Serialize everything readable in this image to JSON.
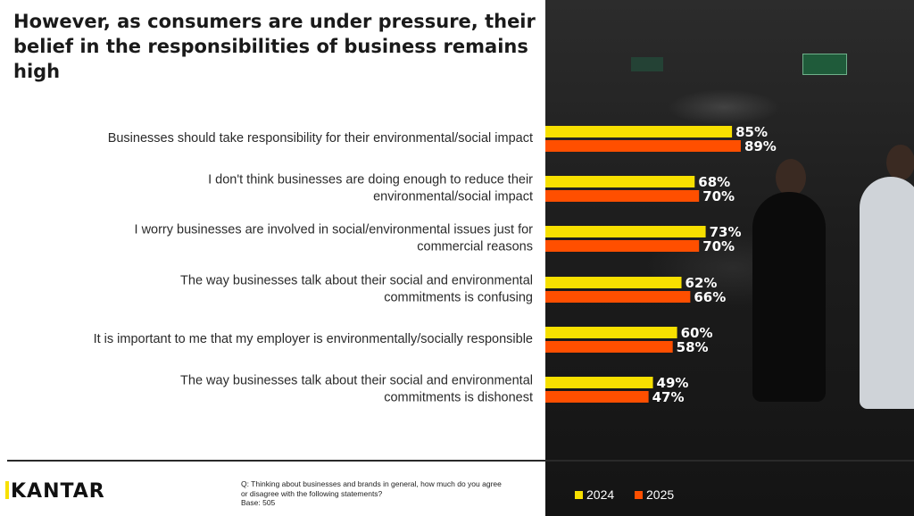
{
  "title": "However, as consumers are under pressure, their belief in the responsibilities of business remains high",
  "brand": "KANTAR",
  "footnote": {
    "question": "Q: Thinking about businesses and brands in general, how much do you agree or disagree with the following statements?",
    "base": "Base: 505"
  },
  "colors": {
    "series_2024": "#f7e000",
    "series_2025": "#ff4f00",
    "label_text": "#ffffff",
    "category_text": "#2a2a2a"
  },
  "chart_data": {
    "type": "bar",
    "orientation": "horizontal",
    "categories": [
      [
        "Businesses should take responsibility for their environmental/social impact"
      ],
      [
        "I don't think businesses are doing enough to reduce their",
        "environmental/social impact"
      ],
      [
        "I worry businesses are involved in social/environmental issues just for",
        "commercial reasons"
      ],
      [
        "The way businesses talk about their social and environmental",
        "commitments is confusing"
      ],
      [
        "It is important to me that my employer is environmentally/socially responsible"
      ],
      [
        "The way businesses talk about their social and environmental",
        "commitments is dishonest"
      ]
    ],
    "series": [
      {
        "name": "2024",
        "values": [
          85,
          68,
          73,
          62,
          60,
          49
        ]
      },
      {
        "name": "2025",
        "values": [
          89,
          70,
          70,
          66,
          58,
          47
        ]
      }
    ],
    "value_suffix": "%",
    "xlim": [
      0,
      100
    ],
    "legend": "bottom-right",
    "grid": false
  }
}
